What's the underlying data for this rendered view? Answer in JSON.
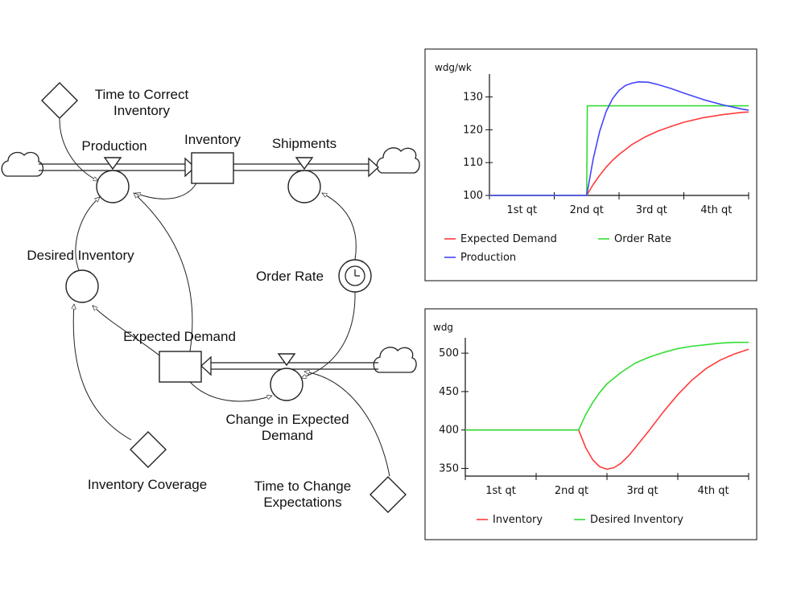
{
  "diagram": {
    "labels": {
      "time_to_correct_inventory": [
        "Time to Correct",
        "Inventory"
      ],
      "production": "Production",
      "inventory": "Inventory",
      "shipments": "Shipments",
      "desired_inventory": "Desired Inventory",
      "order_rate": "Order Rate",
      "expected_demand": "Expected Demand",
      "change_in_expected_demand": [
        "Change in Expected",
        "Demand"
      ],
      "inventory_coverage": "Inventory Coverage",
      "time_to_change_expectations": [
        "Time to Change",
        "Expectations"
      ]
    }
  },
  "chart_data": [
    {
      "type": "line",
      "ylabel": "wdg/wk",
      "yticks": [
        100,
        110,
        120,
        130
      ],
      "ylim": [
        100,
        137
      ],
      "xlim": [
        0,
        4
      ],
      "xtick_labels": [
        "1st qt",
        "2nd qt",
        "3rd qt",
        "4th qt"
      ],
      "legend_placement": "bottom",
      "series": [
        {
          "name": "Expected Demand",
          "color": "#ff3b3b",
          "x": [
            0,
            1.5,
            1.6,
            1.7,
            1.8,
            1.9,
            2.0,
            2.2,
            2.4,
            2.6,
            2.8,
            3.0,
            3.3,
            3.6,
            3.9,
            4.0
          ],
          "y": [
            100,
            100,
            103.3,
            106.1,
            108.6,
            110.7,
            112.5,
            115.5,
            117.8,
            119.6,
            121.0,
            122.3,
            123.7,
            124.6,
            125.3,
            125.4
          ]
        },
        {
          "name": "Order Rate",
          "color": "#33dd33",
          "x": [
            0,
            1.5,
            1.51,
            4.0
          ],
          "y": [
            100,
            100,
            127.3,
            127.3
          ]
        },
        {
          "name": "Production",
          "color": "#4444ff",
          "x": [
            0,
            1.5,
            1.6,
            1.7,
            1.8,
            1.9,
            2.0,
            2.1,
            2.2,
            2.3,
            2.45,
            2.6,
            2.8,
            3.0,
            3.3,
            3.6,
            3.9,
            4.0
          ],
          "y": [
            100,
            100,
            111.0,
            119.5,
            125.5,
            129.5,
            132.0,
            133.5,
            134.2,
            134.6,
            134.5,
            133.8,
            132.6,
            131.2,
            129.2,
            127.6,
            126.3,
            126.0
          ]
        }
      ]
    },
    {
      "type": "line",
      "ylabel": "wdg",
      "yticks": [
        350,
        400,
        450,
        500
      ],
      "ylim": [
        340,
        520
      ],
      "xlim": [
        0,
        4
      ],
      "xtick_labels": [
        "1st qt",
        "2nd qt",
        "3rd qt",
        "4th qt"
      ],
      "legend_placement": "bottom",
      "series": [
        {
          "name": "Inventory",
          "color": "#ff3b3b",
          "x": [
            0,
            1.6,
            1.7,
            1.8,
            1.9,
            2.0,
            2.1,
            2.2,
            2.3,
            2.4,
            2.6,
            2.8,
            3.0,
            3.2,
            3.4,
            3.6,
            3.8,
            4.0
          ],
          "y": [
            400,
            400,
            377,
            361,
            352,
            349,
            351,
            357,
            366,
            377,
            400,
            424,
            446,
            465,
            480,
            491,
            499,
            505
          ]
        },
        {
          "name": "Desired Inventory",
          "color": "#33dd33",
          "x": [
            0,
            1.6,
            1.7,
            1.8,
            1.9,
            2.0,
            2.2,
            2.4,
            2.6,
            2.8,
            3.0,
            3.2,
            3.4,
            3.6,
            3.8,
            4.0
          ],
          "y": [
            400,
            400,
            420,
            436,
            449,
            460,
            475,
            487,
            495,
            501,
            506,
            509,
            511,
            513,
            514,
            514
          ]
        }
      ]
    }
  ]
}
